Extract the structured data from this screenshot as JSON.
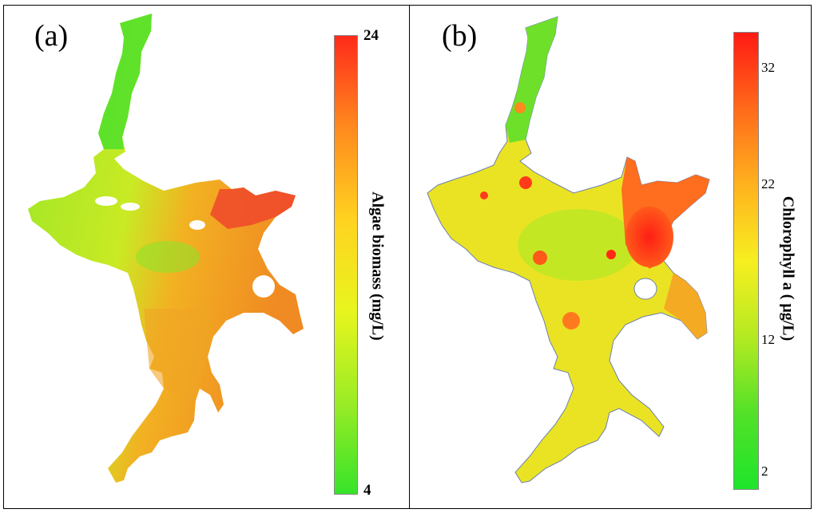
{
  "panels": [
    {
      "label": "(a)",
      "colorbar": {
        "title": "Algae biomass (mg/L)",
        "min": 4,
        "max": 24,
        "tick_labels": [
          "24",
          "4"
        ],
        "colors": [
          "#ff2a1a",
          "#ff8a1e",
          "#ffd220",
          "#e8f51e",
          "#9bec25",
          "#37e32a"
        ]
      }
    },
    {
      "label": "(b)",
      "colorbar": {
        "title": "Chlorophyll a ( μg/L)",
        "min": 0,
        "max": 35,
        "tick_labels": [
          "32",
          "22",
          "12",
          "2"
        ],
        "colors": [
          "#ff1a14",
          "#ff6a1a",
          "#ffb21e",
          "#f7ef20",
          "#b4ea22",
          "#53e128",
          "#1ee52a"
        ]
      }
    }
  ],
  "chart_data": [
    {
      "type": "heatmap",
      "title": "(a)",
      "colorbar_label": "Algae biomass (mg/L)",
      "range": [
        4,
        24
      ],
      "ticks": [
        24,
        4
      ]
    },
    {
      "type": "heatmap",
      "title": "(b)",
      "colorbar_label": "Chlorophyll a ( μg/L)",
      "range": [
        0,
        35
      ],
      "ticks": [
        32,
        22,
        12,
        2
      ]
    }
  ]
}
